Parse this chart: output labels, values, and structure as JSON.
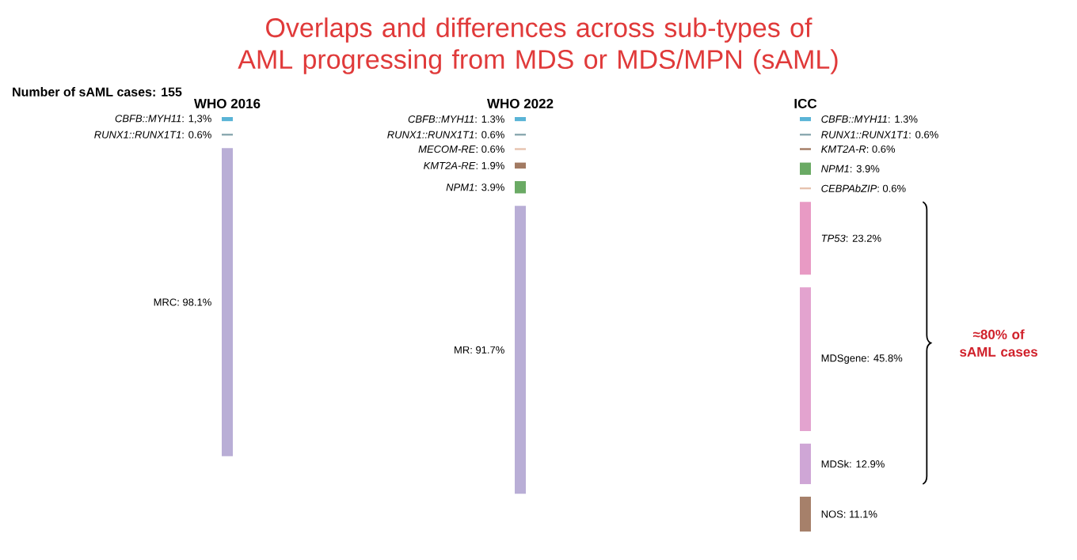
{
  "chart_data": [
    {
      "type": "other",
      "title": "Overlaps and differences across sub-types of AML progressing from MDS or MDS/MPN (sAML)",
      "annotations": [
        "Number of sAML cases: 155"
      ]
    },
    {
      "type": "other",
      "title": "WHO 2016",
      "categories": [
        null,
        null,
        null
      ],
      "values": [
        1.3,
        0.6,
        98.1
      ],
      "value_labels": [
        "*CBFB::MYH11*: 1,3%",
        "*RUNX1::RUNX1T1*: 0.6%",
        "MRC: 98.1%"
      ],
      "colors": [
        "#5ab4d6",
        "#8aa8b0",
        "#b9aed6"
      ]
    },
    {
      "type": "other",
      "title": "WHO 2022",
      "categories": [
        null,
        null,
        null,
        null,
        null,
        null
      ],
      "values": [
        1.3,
        0.6,
        0.6,
        1.9,
        3.9,
        91.7
      ],
      "value_labels": [
        "*CBFB::MYH11*: 1.3%",
        "*RUNX1::RUNX1T1*: 0.6%",
        "*MECOM-RE*: 0.6%",
        "*KMT2A-RE*: 1.9%",
        "*NPM1*: 3.9%",
        "MR: 91.7%"
      ],
      "colors": [
        "#5ab4d6",
        "#8aa8b0",
        "#e6c2ae",
        "#a27a62",
        "#6aaa64",
        "#b9aed6"
      ]
    },
    {
      "type": "other",
      "title": "ICC",
      "categories": [
        null,
        null,
        null,
        null,
        null,
        null,
        null,
        null,
        null
      ],
      "values": [
        1.3,
        0.6,
        0.6,
        3.9,
        0.6,
        23.2,
        45.8,
        12.9,
        11.1
      ],
      "value_labels": [
        "*CBFB::MYH11*: 1.3%",
        "*RUNX1::RUNX1T1*: 0.6%",
        "*KMT2A-R*: 0.6%",
        "*NPM1*: 3.9%",
        "*CEBPAbZIP*: 0.6%",
        "*TP53*: 23.2%",
        "MDSgene: 45.8%",
        "MDSk: 12.9%",
        "NOS: 11.1%"
      ],
      "colors": [
        "#5ab4d6",
        "#8aa8b0",
        "#a27a62",
        "#6aaa64",
        "#e6c2ae",
        "#e89ac4",
        "#e3a3cf",
        "#cfa6d6",
        "#a6806a"
      ],
      "annotations": [
        "≈80% of sAML cases"
      ]
    }
  ]
}
